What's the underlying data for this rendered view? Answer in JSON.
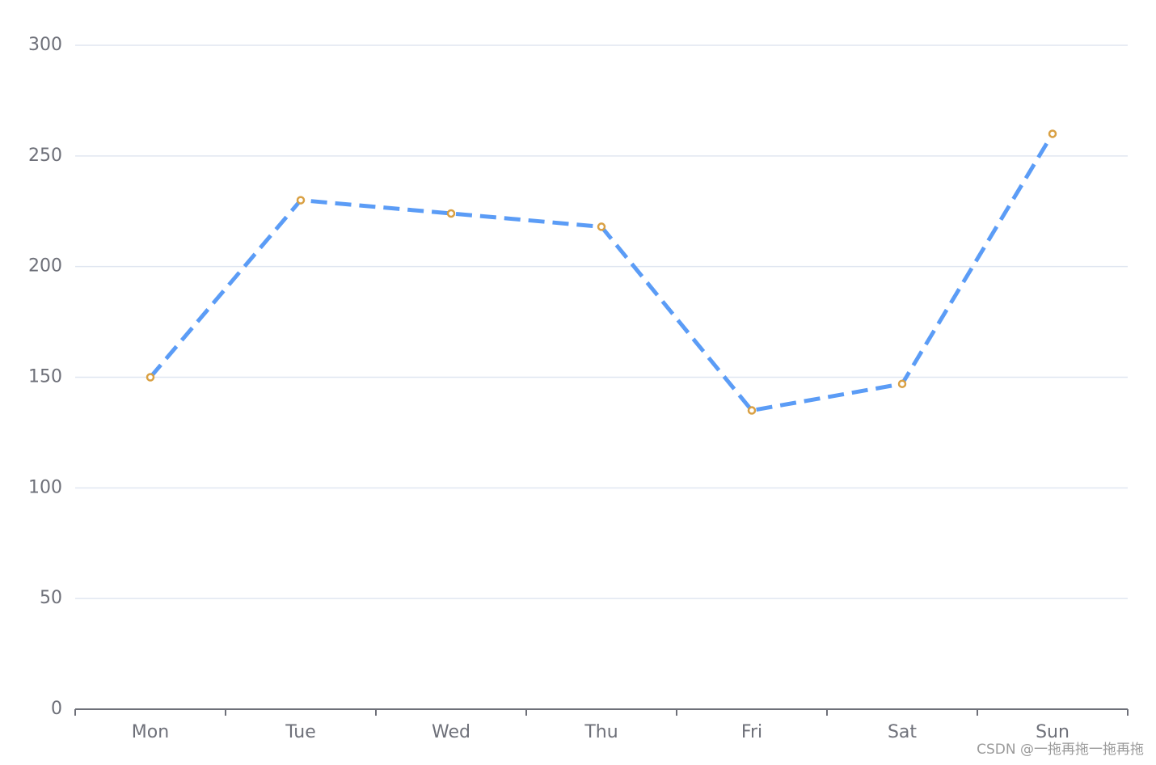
{
  "chart_data": {
    "type": "line",
    "categories": [
      "Mon",
      "Tue",
      "Wed",
      "Thu",
      "Fri",
      "Sat",
      "Sun"
    ],
    "values": [
      150,
      230,
      224,
      218,
      135,
      147,
      260
    ],
    "color": "#5b9cf6",
    "marker_color": "#d9a043",
    "line_style": "dashed",
    "ylim": [
      0,
      300
    ],
    "yticks": [
      0,
      50,
      100,
      150,
      200,
      250,
      300
    ],
    "grid": true,
    "watermark": "CSDN @一拖再拖一拖再拖"
  }
}
